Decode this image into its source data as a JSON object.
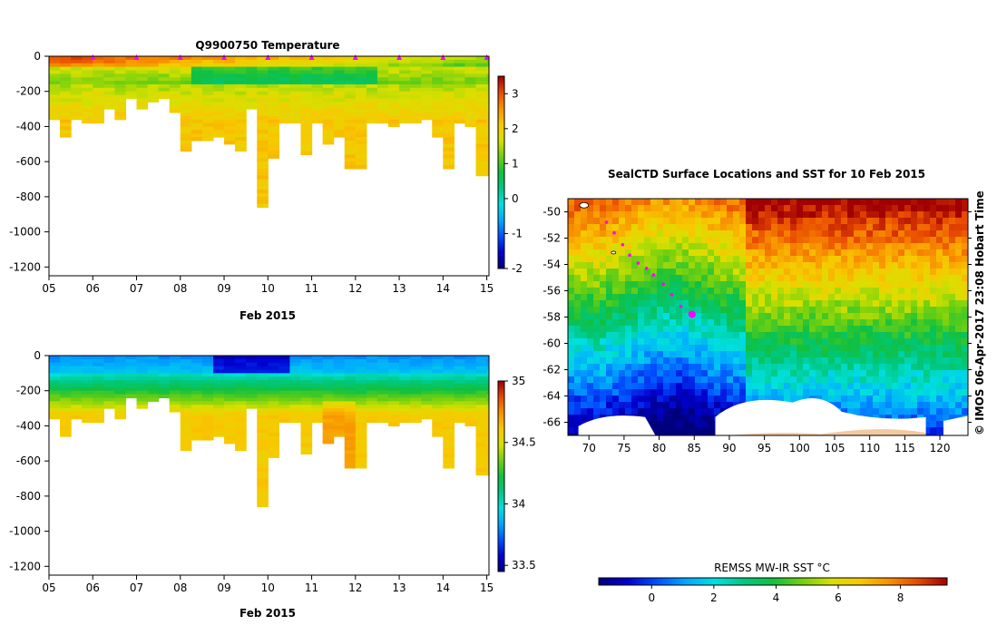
{
  "figure": {
    "colors": {
      "background": "#ffffff",
      "axis": "#000000",
      "marker": "#ff00ff",
      "land": "#f4c8a0",
      "ice": "#ffffff"
    },
    "colormap": [
      "#00007f",
      "#0000d0",
      "#0050ff",
      "#00a8ff",
      "#00e0e0",
      "#00c880",
      "#10c040",
      "#70d010",
      "#d8e000",
      "#f8c800",
      "#f89000",
      "#e84800",
      "#a00000"
    ]
  },
  "chart_data": [
    {
      "type": "heatmap",
      "title": "Q9900750  Temperature",
      "xlabel": "Feb 2015",
      "ylabel": "",
      "x_tick_labels": [
        "05",
        "06",
        "07",
        "08",
        "09",
        "10",
        "11",
        "12",
        "13",
        "14",
        "15"
      ],
      "x_ticks": [
        5,
        6,
        7,
        8,
        9,
        10,
        11,
        12,
        13,
        14,
        15
      ],
      "xlim": [
        5,
        15.05
      ],
      "y_ticks": [
        0,
        -200,
        -400,
        -600,
        -800,
        -1000,
        -1200
      ],
      "ylim": [
        -1250,
        0
      ],
      "profile_times": [
        5.0,
        5.25,
        5.5,
        5.75,
        6.0,
        6.25,
        6.5,
        6.75,
        7.0,
        7.25,
        7.5,
        7.75,
        8.0,
        8.25,
        8.5,
        8.75,
        9.0,
        9.25,
        9.5,
        9.75,
        10.0,
        10.25,
        10.5,
        10.75,
        11.0,
        11.25,
        11.5,
        11.75,
        12.0,
        12.25,
        12.5,
        12.75,
        13.0,
        13.25,
        13.5,
        13.75,
        14.0,
        14.25,
        14.5,
        14.75,
        15.0
      ],
      "profile_max_depth": [
        350,
        460,
        350,
        380,
        380,
        300,
        350,
        240,
        300,
        260,
        240,
        320,
        530,
        480,
        480,
        450,
        500,
        530,
        300,
        850,
        580,
        380,
        380,
        550,
        380,
        500,
        460,
        640,
        640,
        380,
        380,
        400,
        380,
        380,
        350,
        450,
        640,
        380,
        390,
        680,
        680
      ],
      "colorbar": {
        "min": -2,
        "max": 3.5,
        "ticks": [
          3,
          2,
          1,
          0,
          -1,
          -2
        ],
        "tick_labels": [
          "3",
          "2",
          "1",
          "0",
          "-1",
          "-2"
        ]
      },
      "surface_markers_at": [
        6,
        7,
        8,
        9,
        10,
        11,
        12,
        13,
        14,
        15
      ]
    },
    {
      "type": "heatmap",
      "title": "",
      "xlabel": "Feb 2015",
      "ylabel": "",
      "x_tick_labels": [
        "05",
        "06",
        "07",
        "08",
        "09",
        "10",
        "11",
        "12",
        "13",
        "14",
        "15"
      ],
      "x_ticks": [
        5,
        6,
        7,
        8,
        9,
        10,
        11,
        12,
        13,
        14,
        15
      ],
      "xlim": [
        5,
        15.05
      ],
      "y_ticks": [
        0,
        -200,
        -400,
        -600,
        -800,
        -1000,
        -1200
      ],
      "ylim": [
        -1250,
        0
      ],
      "colorbar": {
        "min": 33.45,
        "max": 35.0,
        "ticks": [
          35,
          34.5,
          34,
          33.5
        ],
        "tick_labels": [
          "35",
          "34.5",
          "34",
          "33.5"
        ]
      }
    },
    {
      "type": "heatmap",
      "title": "SealCTD Surface Locations and SST for 10 Feb 2015",
      "xlabel": "",
      "ylabel": "",
      "x_ticks": [
        70,
        75,
        80,
        85,
        90,
        95,
        100,
        105,
        110,
        115,
        120
      ],
      "x_tick_labels": [
        "70",
        "75",
        "80",
        "85",
        "90",
        "95",
        "100",
        "105",
        "110",
        "115",
        "120"
      ],
      "xlim": [
        67,
        124
      ],
      "y_ticks": [
        -50,
        -52,
        -54,
        -56,
        -58,
        -60,
        -62,
        -64,
        -66
      ],
      "y_tick_labels": [
        "-50",
        "-52",
        "-54",
        "-56",
        "-58",
        "-60",
        "-62",
        "-64",
        "-66"
      ],
      "ylim": [
        -67,
        -49
      ],
      "track": [
        {
          "lon": 72.5,
          "lat": -50.8
        },
        {
          "lon": 73.6,
          "lat": -51.6
        },
        {
          "lon": 74.8,
          "lat": -52.5
        },
        {
          "lon": 75.8,
          "lat": -53.3
        },
        {
          "lon": 77.0,
          "lat": -53.9
        },
        {
          "lon": 78.2,
          "lat": -54.3
        },
        {
          "lon": 79.2,
          "lat": -54.8
        },
        {
          "lon": 80.6,
          "lat": -55.5
        },
        {
          "lon": 81.8,
          "lat": -56.3
        },
        {
          "lon": 83.1,
          "lat": -57.2
        },
        {
          "lon": 84.4,
          "lat": -57.7
        }
      ],
      "latest_position": {
        "lon": 84.7,
        "lat": -57.8
      },
      "side_label": "© IMOS 06-Apr-2017 23:08 Hobart Time",
      "colorbar": {
        "label": "REMSS MW-IR SST °C",
        "min": -1.7,
        "max": 9.5,
        "ticks": [
          0,
          2,
          4,
          6,
          8
        ],
        "tick_labels": [
          "0",
          "2",
          "4",
          "6",
          "8"
        ]
      }
    }
  ]
}
